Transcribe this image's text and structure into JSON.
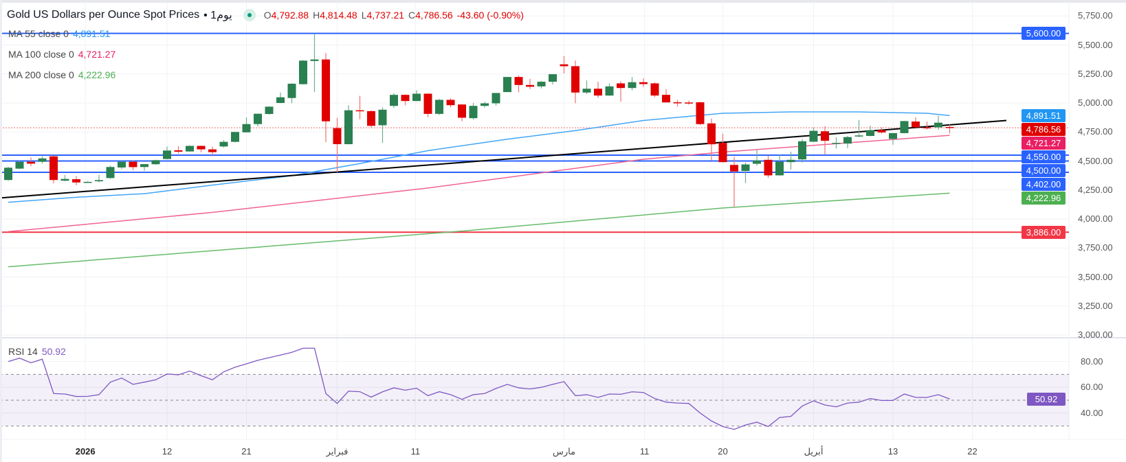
{
  "header": {
    "title": "Gold US Dollars per Ounce Spot Prices",
    "interval": "• 1يوم",
    "ohlc": {
      "o_label": "O",
      "o": "4,792.88",
      "h_label": "H",
      "h": "4,814.48",
      "l_label": "L",
      "l": "4,737.21",
      "c_label": "C",
      "c": "4,786.56",
      "change": "-43.60 (-0.90%)"
    }
  },
  "legend": {
    "ma55": {
      "label": "MA  55 close 0",
      "value": "4,891.51",
      "color": "#2196f3"
    },
    "ma100": {
      "label": "MA  100 close 0",
      "value": "4,721.27",
      "color": "#e91e63"
    },
    "ma200": {
      "label": "MA  200 close 0",
      "value": "4,222.96",
      "color": "#4caf50"
    },
    "rsi": {
      "label": "RSI  14",
      "value": "50.92",
      "color": "#7e57c2"
    }
  },
  "chart_data": {
    "type": "candlestick",
    "title": "Gold US Dollars per Ounce Spot Prices",
    "ylim": [
      3000,
      5750
    ],
    "yticks": [
      "5,750.00",
      "5,500.00",
      "5,250.00",
      "5,000.00",
      "4,750.00",
      "4,500.00",
      "4,250.00",
      "4,000.00",
      "3,750.00",
      "3,500.00",
      "3,250.00",
      "3,000.00"
    ],
    "ytick_values": [
      5750,
      5500,
      5250,
      5000,
      4750,
      4500,
      4250,
      4000,
      3750,
      3500,
      3250,
      3000
    ],
    "xticks": [
      {
        "label": "2026",
        "bar": 6.8,
        "bold": true
      },
      {
        "label": "12",
        "bar": 14
      },
      {
        "label": "21",
        "bar": 21
      },
      {
        "label": "فبراير",
        "bar": 29
      },
      {
        "label": "11",
        "bar": 35.9
      },
      {
        "label": "مارس",
        "bar": 49
      },
      {
        "label": "11",
        "bar": 56.1
      },
      {
        "label": "20",
        "bar": 63
      },
      {
        "label": "أبريل",
        "bar": 71
      },
      {
        "label": "13",
        "bar": 78
      },
      {
        "label": "22",
        "bar": 85
      }
    ],
    "candles": [
      [
        4336,
        4450,
        4330,
        4442
      ],
      [
        4434,
        4500,
        4430,
        4493
      ],
      [
        4493,
        4530,
        4455,
        4477
      ],
      [
        4493,
        4540,
        4478,
        4522
      ],
      [
        4540,
        4545,
        4306,
        4336
      ],
      [
        4330,
        4380,
        4325,
        4345
      ],
      [
        4343,
        4370,
        4290,
        4315
      ],
      [
        4318,
        4325,
        4312,
        4320
      ],
      [
        4325,
        4380,
        4315,
        4335
      ],
      [
        4353,
        4460,
        4345,
        4448
      ],
      [
        4444,
        4500,
        4430,
        4493
      ],
      [
        4493,
        4505,
        4420,
        4447
      ],
      [
        4448,
        4473,
        4415,
        4473
      ],
      [
        4472,
        4510,
        4468,
        4507
      ],
      [
        4517,
        4625,
        4515,
        4590
      ],
      [
        4592,
        4628,
        4565,
        4580
      ],
      [
        4582,
        4635,
        4580,
        4630
      ],
      [
        4630,
        4632,
        4575,
        4600
      ],
      [
        4600,
        4625,
        4540,
        4576
      ],
      [
        4625,
        4680,
        4615,
        4665
      ],
      [
        4665,
        4752,
        4660,
        4750
      ],
      [
        4747,
        4875,
        4745,
        4818
      ],
      [
        4818,
        4910,
        4797,
        4907
      ],
      [
        4905,
        4972,
        4900,
        4968
      ],
      [
        5000,
        5090,
        4998,
        5049
      ],
      [
        5043,
        5170,
        4998,
        5166
      ],
      [
        5162,
        5370,
        5160,
        5365
      ],
      [
        5362,
        5598,
        5095,
        5375
      ],
      [
        5375,
        5430,
        4663,
        4842
      ],
      [
        4783,
        4872,
        4402,
        4645
      ],
      [
        4645,
        4980,
        4642,
        4937
      ],
      [
        4937,
        5062,
        4860,
        4930
      ],
      [
        4930,
        4935,
        4790,
        4803
      ],
      [
        4808,
        4962,
        4656,
        4942
      ],
      [
        4975,
        5084,
        4958,
        5070
      ],
      [
        5070,
        5072,
        4980,
        5017
      ],
      [
        5017,
        5110,
        5015,
        5080
      ],
      [
        5080,
        5082,
        4877,
        4906
      ],
      [
        4906,
        5035,
        4896,
        5027
      ],
      [
        5027,
        5040,
        4962,
        4981
      ],
      [
        4987,
        4990,
        4843,
        4873
      ],
      [
        4869,
        5000,
        4857,
        4975
      ],
      [
        4975,
        5010,
        4960,
        4997
      ],
      [
        4997,
        5086,
        4977,
        5086
      ],
      [
        5094,
        5224,
        5094,
        5224
      ],
      [
        5224,
        5238,
        5092,
        5155
      ],
      [
        5155,
        5208,
        5120,
        5140
      ],
      [
        5143,
        5189,
        5125,
        5183
      ],
      [
        5183,
        5248,
        5160,
        5248
      ],
      [
        5333,
        5405,
        5254,
        5317
      ],
      [
        5317,
        5366,
        4997,
        5090
      ],
      [
        5090,
        5194,
        5076,
        5123
      ],
      [
        5123,
        5183,
        5045,
        5064
      ],
      [
        5064,
        5169,
        5062,
        5143
      ],
      [
        5169,
        5188,
        5011,
        5129
      ],
      [
        5129,
        5224,
        5109,
        5179
      ],
      [
        5179,
        5212,
        5139,
        5163
      ],
      [
        5169,
        5178,
        5050,
        5064
      ],
      [
        5070,
        5119,
        5003,
        5005
      ],
      [
        5006,
        5027,
        4968,
        5000
      ],
      [
        5004,
        5020,
        4985,
        5000
      ],
      [
        5006,
        5010,
        4810,
        4818
      ],
      [
        4824,
        4866,
        4506,
        4644
      ],
      [
        4656,
        4736,
        4488,
        4490
      ],
      [
        4466,
        4536,
        4100,
        4410
      ],
      [
        4414,
        4486,
        4310,
        4470
      ],
      [
        4476,
        4600,
        4460,
        4504
      ],
      [
        4510,
        4546,
        4356,
        4376
      ],
      [
        4376,
        4554,
        4374,
        4494
      ],
      [
        4490,
        4580,
        4426,
        4510
      ],
      [
        4514,
        4690,
        4486,
        4670
      ],
      [
        4666,
        4790,
        4664,
        4760
      ],
      [
        4756,
        4800,
        4554,
        4674
      ],
      [
        4650,
        4704,
        4606,
        4656
      ],
      [
        4650,
        4716,
        4610,
        4706
      ],
      [
        4714,
        4854,
        4706,
        4720
      ],
      [
        4716,
        4804,
        4712,
        4766
      ],
      [
        4766,
        4790,
        4734,
        4746
      ],
      [
        4690,
        4742,
        4640,
        4740
      ],
      [
        4740,
        4846,
        4738,
        4844
      ],
      [
        4840,
        4876,
        4788,
        4790
      ],
      [
        4790,
        4840,
        4770,
        4784
      ],
      [
        4790,
        4890,
        4770,
        4830
      ],
      [
        4792.88,
        4814.48,
        4737.21,
        4786.56
      ]
    ],
    "ma_series": [
      {
        "name": "MA 55",
        "color": "#42a5f5",
        "points": [
          [
            0,
            4144
          ],
          [
            6,
            4187
          ],
          [
            12,
            4218
          ],
          [
            18,
            4292
          ],
          [
            25,
            4373
          ],
          [
            31,
            4478
          ],
          [
            37,
            4589
          ],
          [
            44,
            4688
          ],
          [
            50,
            4762
          ],
          [
            56,
            4849
          ],
          [
            63,
            4911
          ],
          [
            69,
            4923
          ],
          [
            75,
            4923
          ],
          [
            81,
            4911
          ],
          [
            83,
            4891.51
          ]
        ]
      },
      {
        "name": "MA 100",
        "color": "#f06292",
        "points": [
          [
            0,
            3891
          ],
          [
            18,
            4057
          ],
          [
            37,
            4267
          ],
          [
            56,
            4515
          ],
          [
            63,
            4577
          ],
          [
            83,
            4721.27
          ]
        ]
      },
      {
        "name": "MA 200",
        "color": "#66bb6a",
        "points": [
          [
            0,
            3588
          ],
          [
            40,
            3896
          ],
          [
            63,
            4095
          ],
          [
            83,
            4222.96
          ]
        ]
      }
    ],
    "trendline": {
      "color": "#000000",
      "points": [
        [
          0,
          4181
        ],
        [
          88,
          4849
        ]
      ]
    },
    "levels": [
      {
        "price": 5600,
        "color": "#2962ff"
      },
      {
        "price": 4550,
        "color": "#2962ff"
      },
      {
        "price": 4500,
        "color": "#2962ff"
      },
      {
        "price": 4402,
        "color": "#2962ff"
      },
      {
        "price": 3886,
        "color": "#f23645"
      }
    ],
    "last_price": 4786.56,
    "price_tags": [
      {
        "text": "5,600.00",
        "price": 5600,
        "color": "#2962ff"
      },
      {
        "text": "4,891.51",
        "price": 4891.51,
        "color": "#2196f3"
      },
      {
        "text": "4,786.56",
        "price": 4786.56,
        "color": "#e00000"
      },
      {
        "text": "4,721.27",
        "price": 4721.27,
        "color": "#e91e63"
      },
      {
        "text": "4,550.00",
        "price": 4550,
        "color": "#2962ff"
      },
      {
        "text": "4,500.00",
        "price": 4500,
        "color": "#2962ff"
      },
      {
        "text": "4,402.00",
        "price": 4402,
        "color": "#2962ff"
      },
      {
        "text": "4,222.96",
        "price": 4222.96,
        "color": "#4caf50"
      },
      {
        "text": "3,886.00",
        "price": 3886,
        "color": "#f23645"
      }
    ],
    "rsi": {
      "period": 14,
      "current": "50.92",
      "color": "#7e57c2",
      "band": [
        30,
        70
      ],
      "yticks": [
        "80.00",
        "60.00",
        "40.00"
      ],
      "ytick_values": [
        80,
        60,
        40
      ],
      "values": [
        80,
        82.6,
        79,
        81.8,
        55.2,
        54.8,
        52.9,
        53,
        54.3,
        64,
        67.2,
        62.3,
        64,
        65.8,
        70.3,
        69.7,
        72.6,
        69,
        65.8,
        72,
        75.6,
        78.2,
        80.9,
        83,
        85,
        87.1,
        90.3,
        90.3,
        55.2,
        47.5,
        57,
        56.6,
        52.4,
        56.5,
        59.6,
        57.8,
        59.3,
        53.5,
        56.6,
        54.3,
        50.7,
        54.3,
        55.2,
        59.1,
        62.3,
        59.6,
        58.7,
        60,
        62.3,
        64.4,
        53.5,
        54.3,
        52.2,
        54.8,
        54.6,
        56.5,
        56,
        51.3,
        48.5,
        47.8,
        47.5,
        40.1,
        33.9,
        29.6,
        27.4,
        30.8,
        33,
        29.6,
        36.6,
        37.5,
        45.5,
        49.5,
        46.3,
        44.9,
        47.8,
        48.5,
        51.3,
        49.8,
        49.8,
        54.8,
        52.2,
        52.2,
        54.3,
        50.92
      ]
    },
    "colors": {
      "up": "#2a8050",
      "down": "#e00000",
      "up_wick": "#6fae8c",
      "down_wick": "#f07070"
    }
  }
}
